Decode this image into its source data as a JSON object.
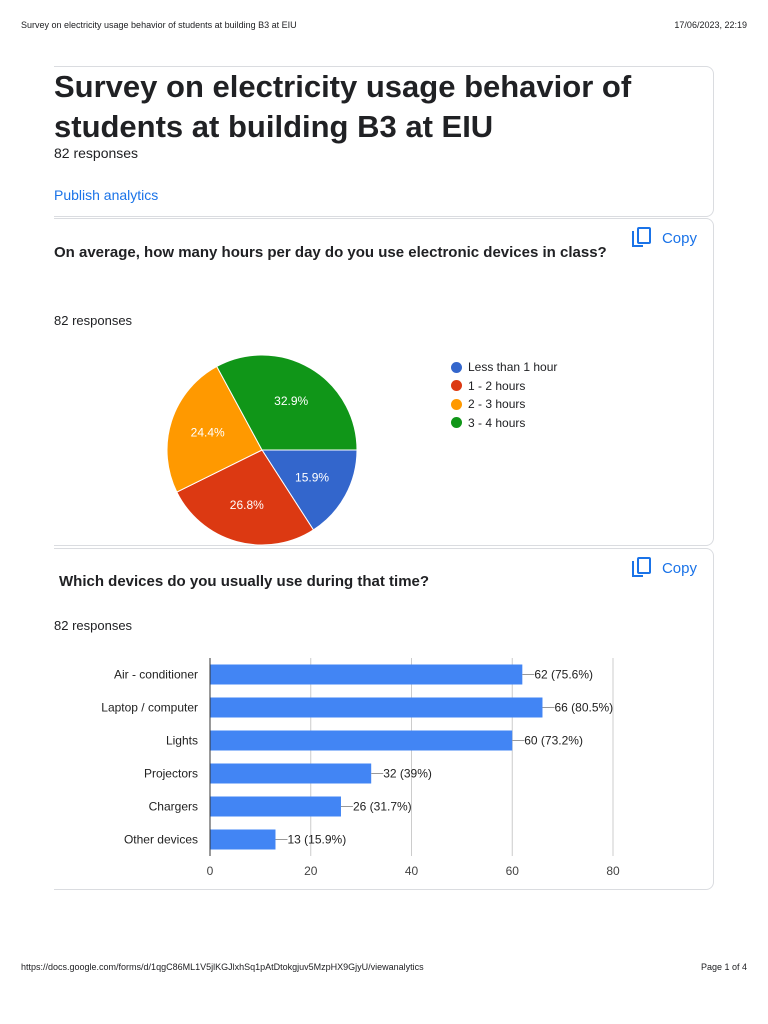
{
  "print_header": {
    "left": "Survey on electricity usage behavior of students at building B3 at EIU",
    "right": "17/06/2023, 22:19"
  },
  "form": {
    "title": "Survey on electricity usage behavior of students at building B3 at EIU",
    "responses": "82 responses",
    "publish_label": "Publish analytics"
  },
  "questions": [
    {
      "text": "On average, how many hours per day do you use electronic devices in class?",
      "responses": "82 responses",
      "copy_label": "Copy"
    },
    {
      "text": "Which devices do you usually use during that time?",
      "responses": "82 responses",
      "copy_label": "Copy"
    }
  ],
  "chart_data": [
    {
      "type": "pie",
      "legend_position": "right",
      "labels": [
        "Less than 1 hour",
        "1 - 2 hours",
        "2 - 3 hours",
        "3 - 4 hours"
      ],
      "values": [
        15.9,
        26.8,
        24.4,
        32.9
      ],
      "value_labels": [
        "15.9%",
        "26.8%",
        "24.4%",
        "32.9%"
      ],
      "colors": [
        "#3366cc",
        "#dc3912",
        "#ff9900",
        "#109618"
      ]
    },
    {
      "type": "bar",
      "orientation": "horizontal",
      "categories": [
        "Air - conditioner",
        "Laptop / computer",
        "Lights",
        "Projectors",
        "Chargers",
        "Other devices"
      ],
      "values": [
        62,
        66,
        60,
        32,
        26,
        13
      ],
      "value_labels": [
        "62 (75.6%)",
        "66 (80.5%)",
        "60 (73.2%)",
        "32 (39%)",
        "26 (31.7%)",
        "13 (15.9%)"
      ],
      "xlim": [
        0,
        80
      ],
      "xticks": [
        "0",
        "20",
        "40",
        "60",
        "80"
      ],
      "grid": true,
      "color": "#4285f4"
    }
  ],
  "print_footer": {
    "left": "https://docs.google.com/forms/d/1qgC86ML1V5jlKGJlxhSq1pAtDtokgjuv5MzpHX9GjyU/viewanalytics",
    "right": "Page 1 of 4"
  }
}
